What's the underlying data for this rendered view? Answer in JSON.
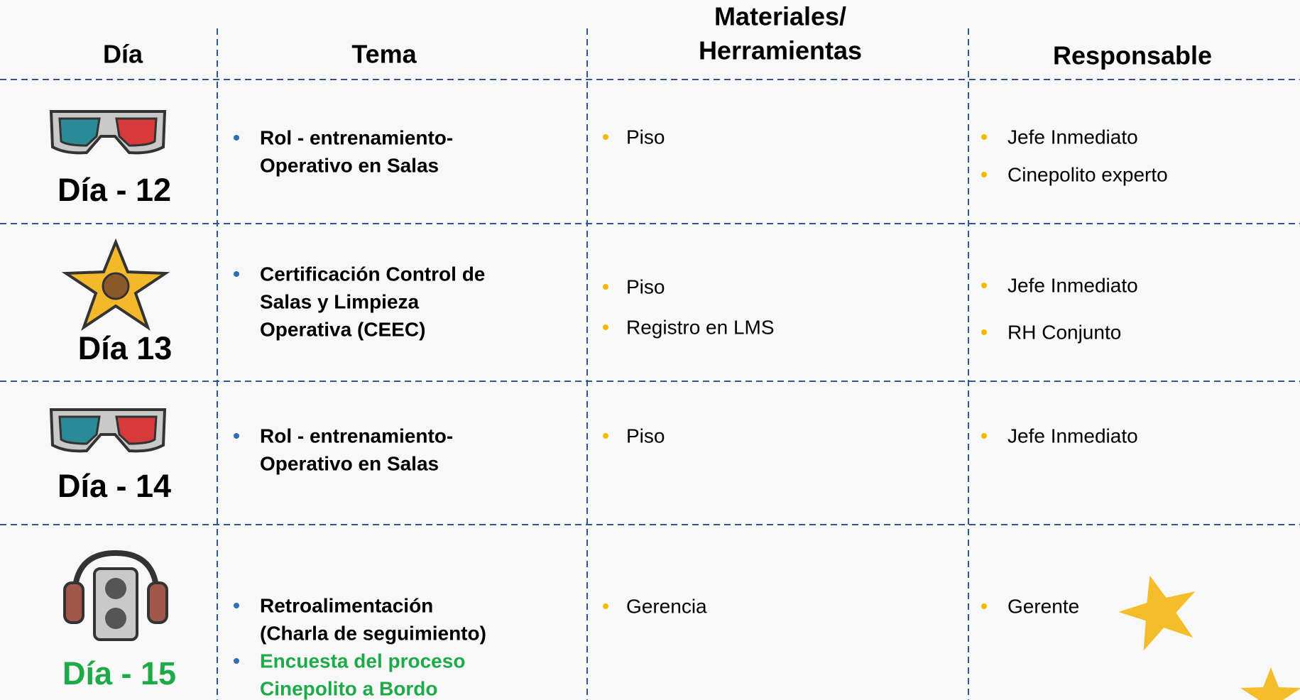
{
  "header": {
    "columns": [
      [
        "Día"
      ],
      [
        "Tema"
      ],
      [
        "Materiales/",
        "Herramientas"
      ],
      [
        "Responsable"
      ]
    ]
  },
  "rows": [
    {
      "day": "Día - 12",
      "tema": [
        [
          "Rol - entrenamiento-",
          "Operativo en Salas"
        ]
      ],
      "materiales": [
        [
          "Piso"
        ]
      ],
      "responsable": [
        [
          "Jefe Inmediato"
        ],
        [
          "Cinepolito experto"
        ]
      ]
    },
    {
      "day": "Día 13",
      "tema": [
        [
          "Certificación  Control de",
          "Salas y Limpieza",
          "Operativa (CEEC)"
        ]
      ],
      "materiales": [
        [
          "Piso"
        ],
        [
          "Registro en LMS"
        ]
      ],
      "responsable": [
        [
          "Jefe Inmediato"
        ],
        [
          "RH Conjunto"
        ]
      ]
    },
    {
      "day": "Día - 14",
      "tema": [
        [
          "Rol - entrenamiento-",
          "Operativo en Salas"
        ]
      ],
      "materiales": [
        [
          "Piso"
        ]
      ],
      "responsable": [
        [
          "Jefe Inmediato"
        ]
      ]
    },
    {
      "day": "Día - 15",
      "tema": [
        [
          "Retroalimentación",
          "(Charla de seguimiento)"
        ],
        [
          "Encuesta del proceso",
          "Cinepolito a Bordo"
        ]
      ],
      "materiales": [
        [
          "Gerencia"
        ]
      ],
      "responsable": [
        [
          "Gerente"
        ]
      ]
    }
  ]
}
